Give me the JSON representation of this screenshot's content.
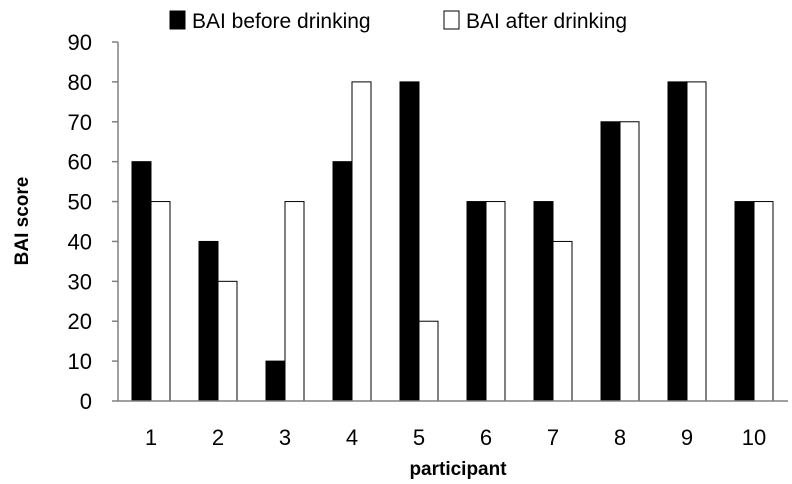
{
  "chart_data": {
    "type": "bar",
    "title": "",
    "xlabel": "participant",
    "ylabel": "BAI score",
    "categories": [
      "1",
      "2",
      "3",
      "4",
      "5",
      "6",
      "7",
      "8",
      "9",
      "10"
    ],
    "series": [
      {
        "name": "BAI before drinking",
        "color": "#000000",
        "values": [
          60,
          40,
          10,
          60,
          80,
          50,
          50,
          70,
          80,
          50
        ]
      },
      {
        "name": "BAI after drinking",
        "color": "#ffffff",
        "values": [
          50,
          30,
          50,
          80,
          20,
          50,
          40,
          70,
          80,
          50
        ]
      }
    ],
    "ylim": [
      0,
      90
    ],
    "yticks": [
      0,
      10,
      20,
      30,
      40,
      50,
      60,
      70,
      80,
      90
    ],
    "grid": false,
    "legend_position": "top-center"
  }
}
